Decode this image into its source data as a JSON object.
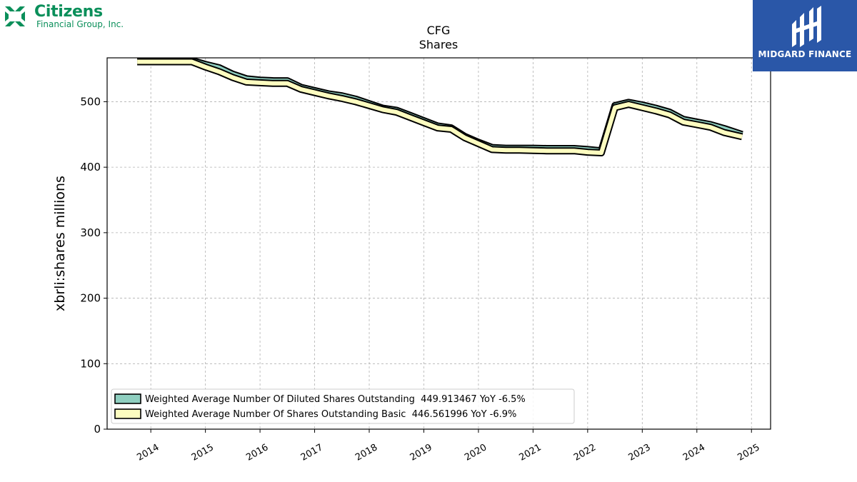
{
  "branding": {
    "citizens_name": "Citizens",
    "citizens_sub": "Financial Group, Inc.",
    "citizens_color": "#0a8f5a",
    "midgard_name": "MIDGARD FINANCE",
    "midgard_color": "#2a57a8"
  },
  "chart_data": {
    "type": "line",
    "title": "CFG",
    "subtitle": "Shares",
    "ylabel": "xbrli:shares millions",
    "xlabel": "",
    "ylim": [
      0,
      567
    ],
    "xlim": [
      2013.2,
      2025.35
    ],
    "y_ticks": [
      0,
      100,
      200,
      300,
      400,
      500
    ],
    "x_ticks": [
      "2014",
      "2015",
      "2016",
      "2017",
      "2018",
      "2019",
      "2020",
      "2021",
      "2022",
      "2023",
      "2024",
      "2025"
    ],
    "grid": true,
    "legend_position": "lower-left",
    "series": [
      {
        "name": "Weighted Average Number Of Diluted Shares Outstanding",
        "legend_label": "Weighted Average Number Of Diluted Shares Outstanding  449.913467 YoY -6.5%",
        "color": "#8fcfc0",
        "x": [
          2013.75,
          2014.0,
          2014.25,
          2014.5,
          2014.75,
          2015.0,
          2015.25,
          2015.5,
          2015.75,
          2016.0,
          2016.25,
          2016.5,
          2016.75,
          2017.0,
          2017.25,
          2017.5,
          2017.75,
          2018.0,
          2018.25,
          2018.5,
          2018.75,
          2019.0,
          2019.25,
          2019.5,
          2019.75,
          2020.0,
          2020.25,
          2020.5,
          2020.75,
          2021.0,
          2021.25,
          2021.5,
          2021.75,
          2022.0,
          2022.25,
          2022.5,
          2022.75,
          2023.0,
          2023.25,
          2023.5,
          2023.75,
          2024.0,
          2024.25,
          2024.5,
          2024.83
        ],
        "y": [
          563,
          563,
          563,
          563,
          563,
          557,
          552,
          542,
          535,
          533,
          532,
          532,
          522,
          517,
          512,
          509,
          504,
          497,
          490,
          487,
          479,
          471,
          463,
          460,
          447,
          438,
          430,
          429,
          429,
          429,
          428.5,
          428.5,
          428.5,
          427,
          425,
          494,
          499,
          495,
          490,
          484,
          473,
          469,
          465,
          459,
          449.9
        ]
      },
      {
        "name": "Weighted Average Number Of Shares Outstanding Basic",
        "legend_label": "Weighted Average Number Of Shares Outstanding Basic  446.561996 YoY -6.9%",
        "color": "#fdfdc0",
        "x": [
          2013.75,
          2014.0,
          2014.25,
          2014.5,
          2014.75,
          2015.0,
          2015.25,
          2015.5,
          2015.75,
          2016.0,
          2016.25,
          2016.5,
          2016.75,
          2017.0,
          2017.25,
          2017.5,
          2017.75,
          2018.0,
          2018.25,
          2018.5,
          2018.75,
          2019.0,
          2019.25,
          2019.5,
          2019.75,
          2020.0,
          2020.25,
          2020.5,
          2020.75,
          2021.0,
          2021.25,
          2021.5,
          2021.75,
          2022.0,
          2022.25,
          2022.5,
          2022.75,
          2023.0,
          2023.25,
          2023.5,
          2023.75,
          2024.0,
          2024.25,
          2024.5,
          2024.83
        ],
        "y": [
          561,
          561,
          561,
          561,
          561,
          553,
          546,
          537,
          530,
          529,
          528,
          528,
          519,
          514,
          509,
          505,
          500,
          494,
          488,
          484,
          476,
          468,
          460,
          458,
          445,
          436,
          427,
          426,
          426,
          425.5,
          425,
          425,
          425,
          423,
          422,
          491,
          496,
          491,
          486,
          480,
          469,
          465,
          461,
          453,
          446.6
        ]
      }
    ]
  }
}
